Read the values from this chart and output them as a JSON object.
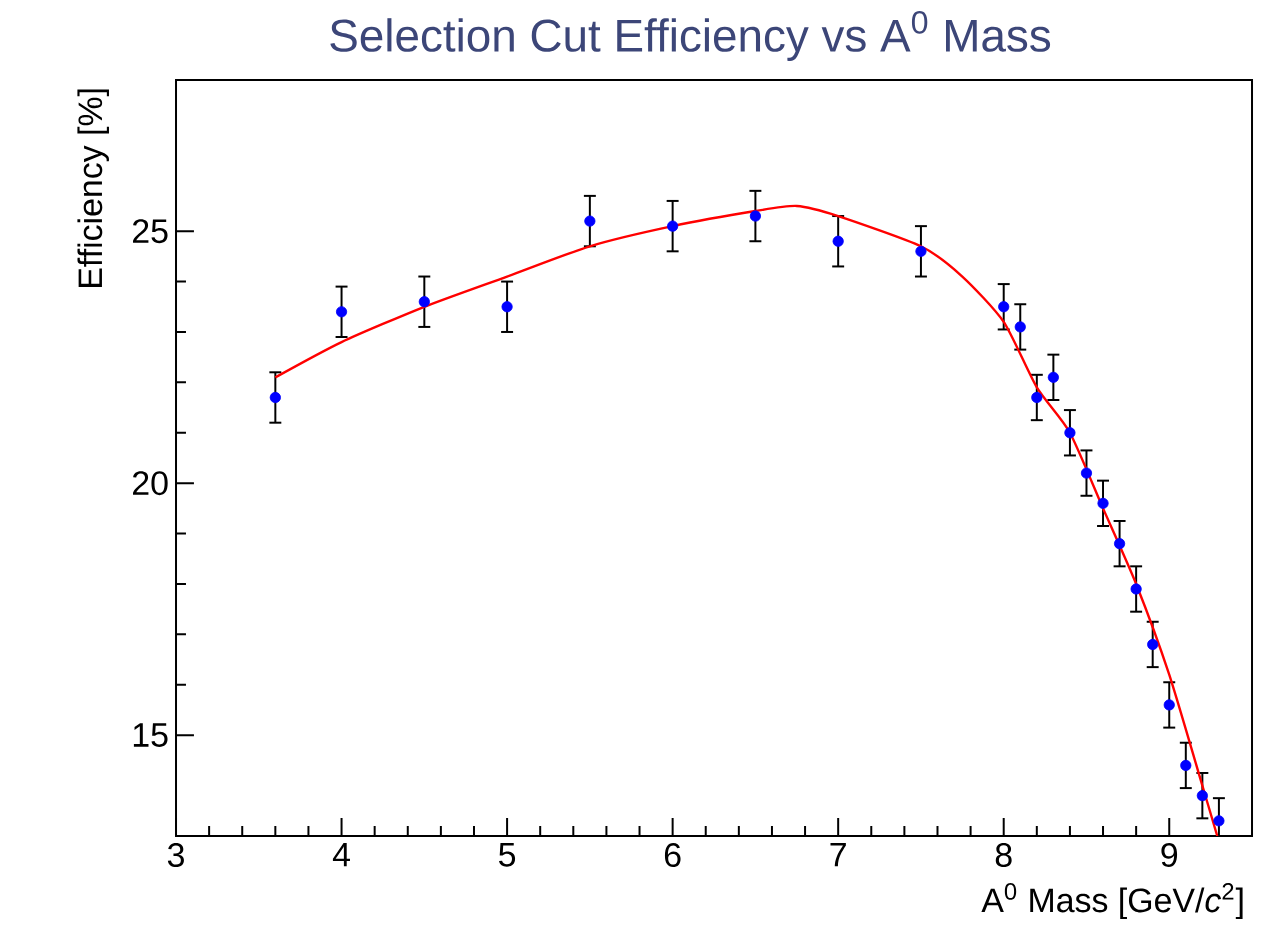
{
  "chart_data": {
    "type": "scatter",
    "title": "Selection Cut Efficiency vs A$^{0}$ Mass",
    "xlabel": "A$^{0}$ Mass [GeV/*c*$^{2}$]",
    "ylabel": "Efficiency [%]",
    "xlim": [
      3,
      9.5
    ],
    "ylim": [
      13,
      28
    ],
    "xticks": [
      3,
      4,
      5,
      6,
      7,
      8,
      9
    ],
    "yticks": [
      15,
      20,
      25
    ],
    "grid": false,
    "series": [
      {
        "color": "#0000ff",
        "marker": "circle",
        "x": [
          3.6,
          4,
          4.5,
          5,
          5.5,
          6,
          6.5,
          7,
          7.5,
          8.0,
          8.1,
          8.2,
          8.3,
          8.4,
          8.5,
          8.6,
          8.7,
          8.8,
          8.9,
          9.0,
          9.1,
          9.2,
          9.3
        ],
        "values": [
          21.7,
          23.4,
          23.6,
          23.5,
          25.2,
          25.1,
          25.3,
          24.8,
          24.6,
          23.5,
          23.1,
          21.7,
          22.1,
          21.0,
          20.2,
          19.6,
          18.8,
          17.9,
          16.8,
          15.6,
          14.4,
          13.8,
          13.3
        ],
        "errors": [
          0.5,
          0.5,
          0.5,
          0.5,
          0.5,
          0.5,
          0.5,
          0.5,
          0.5,
          0.45,
          0.45,
          0.45,
          0.45,
          0.45,
          0.45,
          0.45,
          0.45,
          0.45,
          0.45,
          0.45,
          0.45,
          0.45,
          0.45
        ]
      },
      {
        "type": "line",
        "color": "#ff0000",
        "marker": "none",
        "x": [
          3.6,
          4,
          4.5,
          5,
          5.5,
          6,
          6.5,
          6.75,
          7,
          7.5,
          7.75,
          8.0,
          8.2,
          8.4,
          8.6,
          8.8,
          9.0,
          9.2,
          9.29
        ],
        "values": [
          22.1,
          22.8,
          23.5,
          24.1,
          24.7,
          25.1,
          25.4,
          25.5,
          25.3,
          24.7,
          24.1,
          23.2,
          21.9,
          21.0,
          19.5,
          18.0,
          16.2,
          14.0,
          13.0
        ]
      }
    ]
  }
}
